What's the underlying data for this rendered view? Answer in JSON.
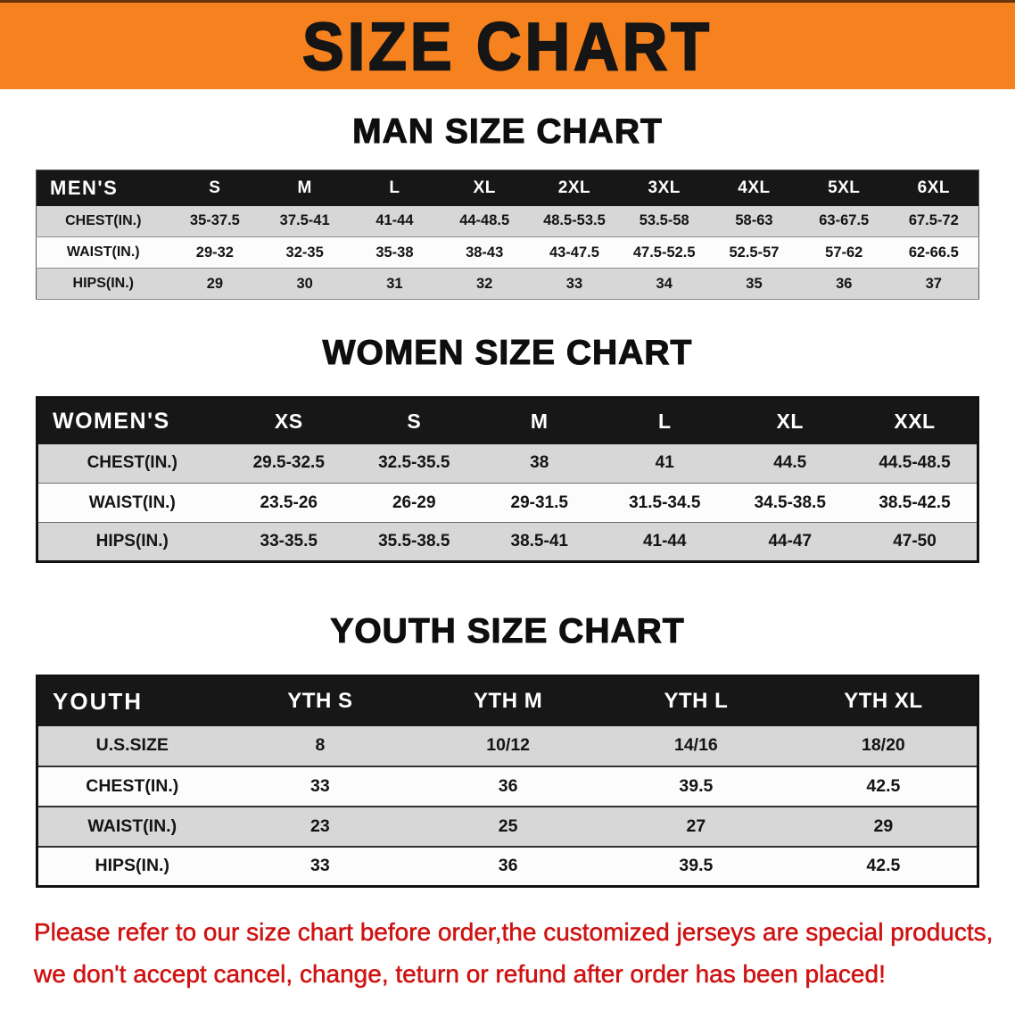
{
  "banner": {
    "title": "SIZE CHART",
    "background_color": "#f5821f"
  },
  "chart_data": [
    {
      "type": "table",
      "title": "MAN SIZE CHART",
      "columns": [
        "MEN'S",
        "S",
        "M",
        "L",
        "XL",
        "2XL",
        "3XL",
        "4XL",
        "5XL",
        "6XL"
      ],
      "rows": [
        [
          "CHEST(IN.)",
          "35-37.5",
          "37.5-41",
          "41-44",
          "44-48.5",
          "48.5-53.5",
          "53.5-58",
          "58-63",
          "63-67.5",
          "67.5-72"
        ],
        [
          "WAIST(IN.)",
          "29-32",
          "32-35",
          "35-38",
          "38-43",
          "43-47.5",
          "47.5-52.5",
          "52.5-57",
          "57-62",
          "62-66.5"
        ],
        [
          "HIPS(IN.)",
          "29",
          "30",
          "31",
          "32",
          "33",
          "34",
          "35",
          "36",
          "37"
        ]
      ]
    },
    {
      "type": "table",
      "title": "WOMEN SIZE CHART",
      "columns": [
        "WOMEN'S",
        "XS",
        "S",
        "M",
        "L",
        "XL",
        "XXL"
      ],
      "rows": [
        [
          "CHEST(IN.)",
          "29.5-32.5",
          "32.5-35.5",
          "38",
          "41",
          "44.5",
          "44.5-48.5"
        ],
        [
          "WAIST(IN.)",
          "23.5-26",
          "26-29",
          "29-31.5",
          "31.5-34.5",
          "34.5-38.5",
          "38.5-42.5"
        ],
        [
          "HIPS(IN.)",
          "33-35.5",
          "35.5-38.5",
          "38.5-41",
          "41-44",
          "44-47",
          "47-50"
        ]
      ]
    },
    {
      "type": "table",
      "title": "YOUTH SIZE CHART",
      "columns": [
        "YOUTH",
        "YTH S",
        "YTH M",
        "YTH L",
        "YTH XL"
      ],
      "rows": [
        [
          "U.S.SIZE",
          "8",
          "10/12",
          "14/16",
          "18/20"
        ],
        [
          "CHEST(IN.)",
          "33",
          "36",
          "39.5",
          "42.5"
        ],
        [
          "WAIST(IN.)",
          "23",
          "25",
          "27",
          "29"
        ],
        [
          "HIPS(IN.)",
          "33",
          "36",
          "39.5",
          "42.5"
        ]
      ]
    }
  ],
  "note": {
    "text_color": "#ce1312",
    "line1": "Please refer to our size chart before order,the customized jerseys are special products,",
    "line2": "we don't accept cancel, change, teturn or refund after order has been placed!"
  }
}
